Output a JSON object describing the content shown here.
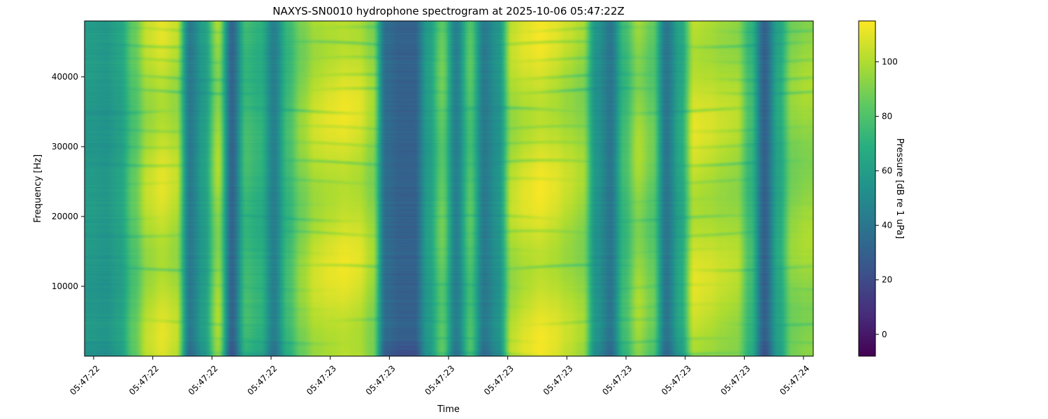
{
  "chart_data": {
    "type": "heatmap",
    "title": "NAXYS-SN0010 hydrophone spectrogram at 2025-10-06 05:47:22Z",
    "xlabel": "Time",
    "ylabel": "Frequency [Hz]",
    "x_tick_labels": [
      "05:47:22",
      "05:47:22",
      "05:47:22",
      "05:47:22",
      "05:47:23",
      "05:47:23",
      "05:47:23",
      "05:47:23",
      "05:47:23",
      "05:47:23",
      "05:47:23",
      "05:47:23",
      "05:47:24"
    ],
    "y_ticks": [
      10000,
      20000,
      30000,
      40000
    ],
    "ylim": [
      0,
      48000
    ],
    "colormap": "viridis",
    "colorbar": {
      "label": "Pressure [dB re 1 uPa]",
      "range": [
        -8,
        115
      ],
      "ticks": [
        0,
        20,
        40,
        60,
        80,
        100
      ]
    },
    "time_profile_db": [
      58,
      56,
      62,
      82,
      100,
      105,
      100,
      42,
      60,
      95,
      32,
      75,
      70,
      45,
      75,
      92,
      102,
      105,
      107,
      105,
      95,
      35,
      30,
      30,
      60,
      85,
      45,
      80,
      42,
      55,
      100,
      105,
      108,
      105,
      100,
      95,
      55,
      40,
      75,
      95,
      85,
      40,
      65,
      105,
      103,
      100,
      98,
      75,
      30,
      65,
      92,
      95
    ],
    "grid": false
  }
}
